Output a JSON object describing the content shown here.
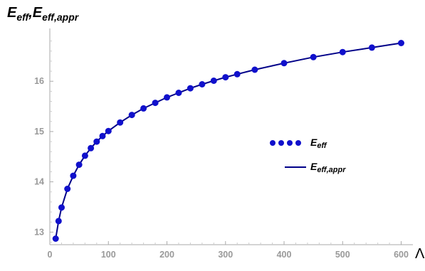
{
  "chart_data": {
    "type": "scatter",
    "xlabel": "Λ",
    "ylabel_main": "E",
    "ylabel_sub1": "eff",
    "ylabel_sep": ",",
    "ylabel_sub2": "eff,appr",
    "xlim": [
      0,
      620
    ],
    "ylim": [
      12.75,
      17.05
    ],
    "xticks": [
      0,
      100,
      200,
      300,
      400,
      500,
      600
    ],
    "yticks": [
      13,
      14,
      15,
      16
    ],
    "grid": false,
    "legend_position": "center-right",
    "series": [
      {
        "name_main": "E",
        "name_sub": "eff",
        "style": "points",
        "color": "#1010cc",
        "x": [
          10,
          15,
          20,
          30,
          40,
          50,
          60,
          70,
          80,
          90,
          100,
          120,
          140,
          160,
          180,
          200,
          220,
          240,
          260,
          280,
          300,
          320,
          350,
          400,
          450,
          500,
          550,
          600
        ],
        "y": [
          12.87,
          13.22,
          13.49,
          13.86,
          14.12,
          14.34,
          14.52,
          14.67,
          14.8,
          14.91,
          15.01,
          15.18,
          15.33,
          15.46,
          15.57,
          15.68,
          15.77,
          15.86,
          15.94,
          16.01,
          16.08,
          16.14,
          16.23,
          16.36,
          16.48,
          16.58,
          16.67,
          16.76
        ]
      },
      {
        "name_main": "E",
        "name_sub": "eff,appr",
        "style": "line",
        "color": "#000088",
        "x": [
          10,
          15,
          20,
          30,
          40,
          50,
          60,
          70,
          80,
          90,
          100,
          120,
          140,
          160,
          180,
          200,
          220,
          240,
          260,
          280,
          300,
          320,
          350,
          400,
          450,
          500,
          550,
          600
        ],
        "y": [
          12.87,
          13.22,
          13.49,
          13.86,
          14.12,
          14.34,
          14.52,
          14.67,
          14.8,
          14.91,
          15.01,
          15.18,
          15.33,
          15.46,
          15.57,
          15.68,
          15.77,
          15.86,
          15.94,
          16.01,
          16.08,
          16.14,
          16.23,
          16.36,
          16.48,
          16.58,
          16.67,
          16.76
        ]
      }
    ]
  }
}
